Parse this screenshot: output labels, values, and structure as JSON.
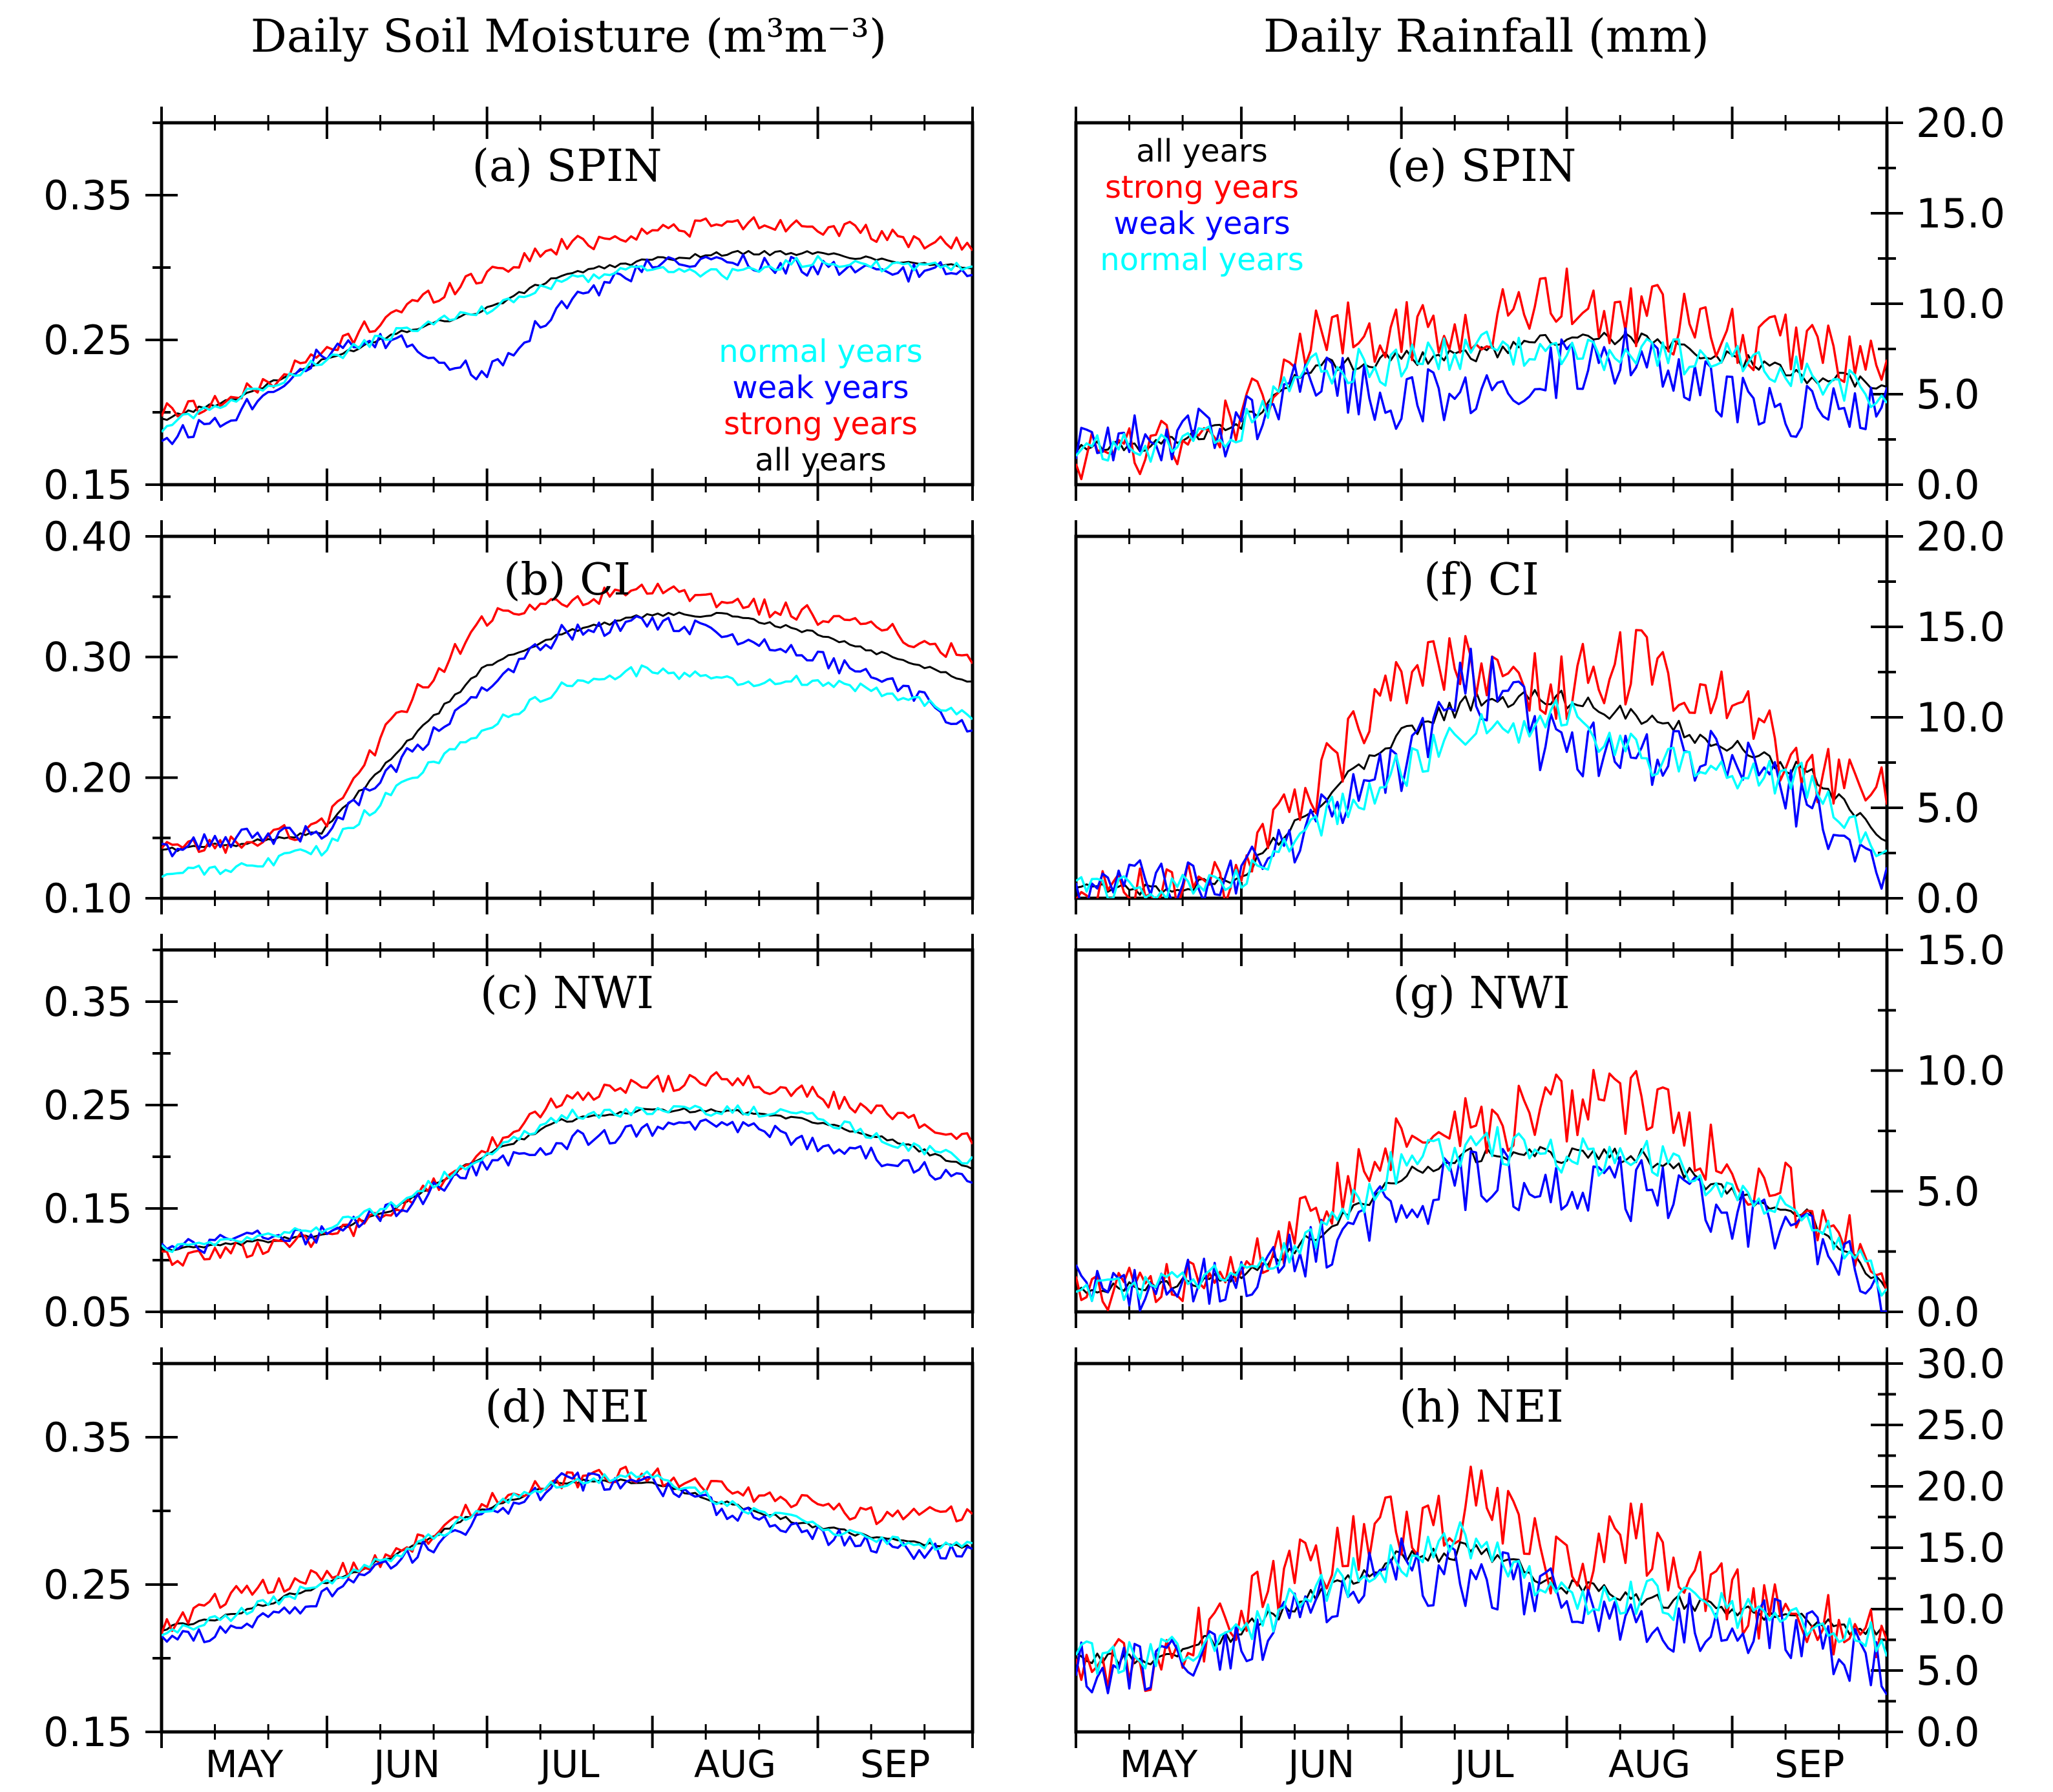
{
  "titles": {
    "left": "Daily Soil Moisture (m³m⁻³)",
    "right": "Daily Rainfall (mm)"
  },
  "months": [
    "MAY",
    "JUN",
    "JUL",
    "AUG",
    "SEP"
  ],
  "colors": {
    "all years": "#000000",
    "strong years": "#ff0000",
    "weak years": "#0000ff",
    "normal years": "#00ffff"
  },
  "chart_data": [
    {
      "type": "line",
      "panel": "(a) SPIN",
      "column": "left",
      "ylim": [
        0.15,
        0.4
      ],
      "yticks": [
        "0.15",
        "0.25",
        "0.35"
      ],
      "legend_placement": "bottom-right",
      "legend": [
        "normal years",
        "weak years",
        "strong years",
        "all years"
      ],
      "x": [
        1,
        15,
        31,
        45,
        61,
        76,
        92,
        107,
        123,
        138,
        153
      ],
      "series": [
        {
          "name": "all years",
          "values": [
            0.195,
            0.21,
            0.235,
            0.255,
            0.27,
            0.295,
            0.305,
            0.31,
            0.31,
            0.305,
            0.3
          ]
        },
        {
          "name": "strong years",
          "values": [
            0.2,
            0.21,
            0.24,
            0.27,
            0.295,
            0.315,
            0.325,
            0.33,
            0.33,
            0.32,
            0.315
          ]
        },
        {
          "name": "weak years",
          "values": [
            0.18,
            0.2,
            0.24,
            0.25,
            0.225,
            0.275,
            0.3,
            0.305,
            0.3,
            0.295,
            0.3
          ]
        },
        {
          "name": "normal years",
          "values": [
            0.19,
            0.21,
            0.235,
            0.255,
            0.27,
            0.29,
            0.3,
            0.295,
            0.305,
            0.3,
            0.3
          ]
        }
      ]
    },
    {
      "type": "line",
      "panel": "(b) CI",
      "column": "left",
      "ylim": [
        0.1,
        0.4
      ],
      "yticks": [
        "0.10",
        "0.20",
        "0.30",
        "0.40"
      ],
      "x": [
        1,
        15,
        31,
        45,
        61,
        76,
        92,
        107,
        123,
        138,
        153
      ],
      "series": [
        {
          "name": "all years",
          "values": [
            0.14,
            0.145,
            0.155,
            0.22,
            0.29,
            0.32,
            0.335,
            0.335,
            0.32,
            0.3,
            0.28
          ]
        },
        {
          "name": "strong years",
          "values": [
            0.14,
            0.145,
            0.16,
            0.25,
            0.33,
            0.345,
            0.355,
            0.345,
            0.335,
            0.32,
            0.3
          ]
        },
        {
          "name": "weak years",
          "values": [
            0.14,
            0.15,
            0.155,
            0.21,
            0.27,
            0.32,
            0.33,
            0.32,
            0.3,
            0.28,
            0.24
          ]
        },
        {
          "name": "normal years",
          "values": [
            0.12,
            0.125,
            0.14,
            0.19,
            0.24,
            0.275,
            0.29,
            0.28,
            0.28,
            0.27,
            0.25
          ]
        }
      ]
    },
    {
      "type": "line",
      "panel": "(c) NWI",
      "column": "left",
      "ylim": [
        0.05,
        0.4
      ],
      "yticks": [
        "0.05",
        "0.15",
        "0.25",
        "0.35"
      ],
      "x": [
        1,
        15,
        31,
        45,
        61,
        76,
        92,
        107,
        123,
        138,
        153
      ],
      "series": [
        {
          "name": "all years",
          "values": [
            0.11,
            0.115,
            0.125,
            0.15,
            0.2,
            0.235,
            0.245,
            0.245,
            0.235,
            0.215,
            0.19
          ]
        },
        {
          "name": "strong years",
          "values": [
            0.1,
            0.11,
            0.12,
            0.145,
            0.205,
            0.255,
            0.27,
            0.275,
            0.26,
            0.24,
            0.22
          ]
        },
        {
          "name": "weak years",
          "values": [
            0.11,
            0.12,
            0.125,
            0.15,
            0.19,
            0.215,
            0.225,
            0.23,
            0.215,
            0.195,
            0.175
          ]
        },
        {
          "name": "normal years",
          "values": [
            0.11,
            0.12,
            0.13,
            0.155,
            0.2,
            0.24,
            0.245,
            0.245,
            0.24,
            0.215,
            0.195
          ]
        }
      ]
    },
    {
      "type": "line",
      "panel": "(d) NEI",
      "column": "left",
      "ylim": [
        0.15,
        0.4
      ],
      "yticks": [
        "0.15",
        "0.25",
        "0.35"
      ],
      "x": [
        1,
        15,
        31,
        45,
        61,
        76,
        92,
        107,
        123,
        138,
        153
      ],
      "series": [
        {
          "name": "all years",
          "values": [
            0.22,
            0.23,
            0.25,
            0.27,
            0.3,
            0.32,
            0.32,
            0.305,
            0.29,
            0.28,
            0.275
          ]
        },
        {
          "name": "strong years",
          "values": [
            0.22,
            0.245,
            0.255,
            0.27,
            0.305,
            0.32,
            0.325,
            0.315,
            0.305,
            0.295,
            0.3
          ]
        },
        {
          "name": "weak years",
          "values": [
            0.21,
            0.22,
            0.24,
            0.265,
            0.295,
            0.32,
            0.32,
            0.3,
            0.285,
            0.275,
            0.27
          ]
        },
        {
          "name": "normal years",
          "values": [
            0.215,
            0.23,
            0.25,
            0.27,
            0.3,
            0.32,
            0.325,
            0.305,
            0.29,
            0.28,
            0.275
          ]
        }
      ]
    },
    {
      "type": "line",
      "panel": "(e) SPIN",
      "column": "right",
      "ylim": [
        0,
        20
      ],
      "yticks": [
        "0.0",
        "5.0",
        "10.0",
        "15.0",
        "20.0"
      ],
      "legend_placement": "top-left",
      "legend": [
        "all years",
        "strong years",
        "weak years",
        "normal years"
      ],
      "x": [
        1,
        15,
        31,
        45,
        61,
        76,
        92,
        107,
        123,
        138,
        153
      ],
      "series": [
        {
          "name": "all years",
          "values": [
            2.0,
            2.2,
            3.2,
            6.5,
            7.0,
            7.2,
            8.0,
            8.0,
            7.0,
            6.0,
            5.5
          ]
        },
        {
          "name": "strong years",
          "values": [
            1.5,
            2.0,
            3.5,
            8.0,
            8.5,
            9.0,
            10.0,
            9.5,
            8.0,
            7.5,
            6.0
          ]
        },
        {
          "name": "weak years",
          "values": [
            2.5,
            2.5,
            3.0,
            6.0,
            4.5,
            5.5,
            6.5,
            7.0,
            5.0,
            4.0,
            4.5
          ]
        },
        {
          "name": "normal years",
          "values": [
            2.0,
            2.0,
            3.0,
            6.5,
            6.5,
            7.5,
            7.5,
            7.0,
            7.0,
            6.0,
            5.0
          ]
        }
      ]
    },
    {
      "type": "line",
      "panel": "(f) CI",
      "column": "right",
      "ylim": [
        0,
        20
      ],
      "yticks": [
        "0.0",
        "5.0",
        "10.0",
        "15.0",
        "20.0"
      ],
      "x": [
        1,
        15,
        31,
        45,
        61,
        76,
        92,
        107,
        123,
        138,
        153
      ],
      "series": [
        {
          "name": "all years",
          "values": [
            0.5,
            0.5,
            1.0,
            5.0,
            9.0,
            11.0,
            11.0,
            10.0,
            8.5,
            7.0,
            3.0
          ]
        },
        {
          "name": "strong years",
          "values": [
            0.5,
            0.5,
            1.0,
            6.0,
            12.0,
            13.0,
            12.0,
            13.0,
            11.0,
            7.0,
            5.5
          ]
        },
        {
          "name": "weak years",
          "values": [
            0.5,
            1.0,
            1.0,
            4.0,
            7.0,
            12.0,
            8.0,
            8.0,
            8.0,
            5.0,
            1.5
          ]
        },
        {
          "name": "normal years",
          "values": [
            0.5,
            0.5,
            1.0,
            4.0,
            7.0,
            9.0,
            10.0,
            8.0,
            7.0,
            6.5,
            2.5
          ]
        }
      ]
    },
    {
      "type": "line",
      "panel": "(g) NWI",
      "column": "right",
      "ylim": [
        0,
        15
      ],
      "yticks": [
        "0.0",
        "5.0",
        "10.0",
        "15.0"
      ],
      "x": [
        1,
        15,
        31,
        45,
        61,
        76,
        92,
        107,
        123,
        138,
        153
      ],
      "series": [
        {
          "name": "all years",
          "values": [
            1.0,
            1.0,
            1.5,
            3.0,
            5.5,
            6.5,
            6.5,
            6.5,
            5.0,
            4.0,
            1.0
          ]
        },
        {
          "name": "strong years",
          "values": [
            1.0,
            1.0,
            1.5,
            4.0,
            7.0,
            8.0,
            8.5,
            8.5,
            6.0,
            4.5,
            1.5
          ]
        },
        {
          "name": "weak years",
          "values": [
            1.0,
            1.0,
            1.5,
            2.5,
            4.5,
            5.5,
            5.5,
            5.0,
            4.0,
            3.5,
            0.5
          ]
        },
        {
          "name": "normal years",
          "values": [
            1.0,
            1.0,
            1.5,
            3.0,
            6.0,
            7.0,
            6.5,
            6.5,
            5.0,
            4.0,
            1.0
          ]
        }
      ]
    },
    {
      "type": "line",
      "panel": "(h) NEI",
      "column": "right",
      "ylim": [
        0,
        30
      ],
      "yticks": [
        "0.0",
        "5.0",
        "10.0",
        "15.0",
        "20.0",
        "25.0",
        "30.0"
      ],
      "x": [
        1,
        15,
        31,
        45,
        61,
        76,
        92,
        107,
        123,
        138,
        153
      ],
      "series": [
        {
          "name": "all years",
          "values": [
            6.0,
            6.0,
            8.0,
            11.0,
            14.0,
            15.0,
            12.0,
            11.0,
            10.0,
            9.0,
            8.0
          ]
        },
        {
          "name": "strong years",
          "values": [
            6.0,
            5.0,
            10.0,
            14.0,
            17.0,
            19.0,
            13.0,
            16.0,
            11.0,
            9.0,
            8.0
          ]
        },
        {
          "name": "weak years",
          "values": [
            5.5,
            5.0,
            7.0,
            10.0,
            13.0,
            13.0,
            11.0,
            9.0,
            9.0,
            8.0,
            5.0
          ]
        },
        {
          "name": "normal years",
          "values": [
            6.0,
            6.0,
            8.0,
            11.0,
            14.0,
            16.0,
            11.0,
            11.0,
            10.0,
            9.0,
            7.5
          ]
        }
      ]
    }
  ]
}
